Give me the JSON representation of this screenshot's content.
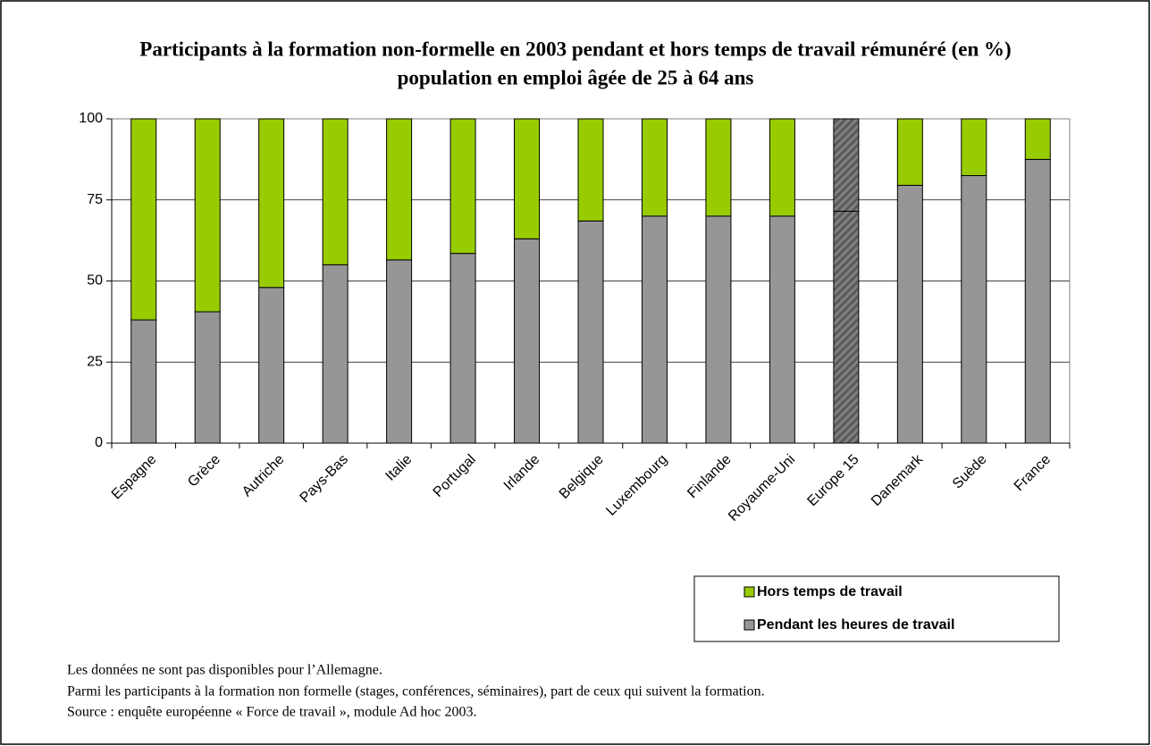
{
  "chart_data": {
    "type": "bar",
    "stacked": true,
    "title": "Participants à la formation non-formelle en 2003 pendant et hors temps de travail rémunéré (en  %)",
    "subtitle": "population en emploi âgée de 25 à 64 ans",
    "categories": [
      "Espagne",
      "Grèce",
      "Autriche",
      "Pays-Bas",
      "Italie",
      "Portugal",
      "Irlande",
      "Belgique",
      "Luxembourg",
      "Finlande",
      "Royaume-Uni",
      "Europe 15",
      "Danemark",
      "Suède",
      "France"
    ],
    "series": [
      {
        "name": "Pendant les heures de travail",
        "color": "#969696",
        "values": [
          38,
          40.5,
          48,
          55,
          56.5,
          58.5,
          63,
          68.5,
          70,
          70,
          70,
          71.5,
          79.5,
          82.5,
          87.5
        ]
      },
      {
        "name": "Hors temps de travail",
        "color": "#99cc00",
        "values": [
          62,
          59.5,
          52,
          45,
          43.5,
          41.5,
          37,
          31.5,
          30,
          30,
          30,
          28.5,
          20.5,
          17.5,
          12.5
        ]
      }
    ],
    "highlight_category": 11,
    "ylim": [
      0,
      100
    ],
    "yticks": [
      0,
      25,
      50,
      75,
      100
    ],
    "grid": true,
    "notes": [
      "Les données ne sont pas disponibles pour l’Allemagne.",
      "Parmi les participants à la formation non formelle (stages, conférences, séminaires), part de ceux qui suivent la formation.",
      "Source : enquête européenne « Force de travail », module Ad hoc 2003."
    ]
  }
}
